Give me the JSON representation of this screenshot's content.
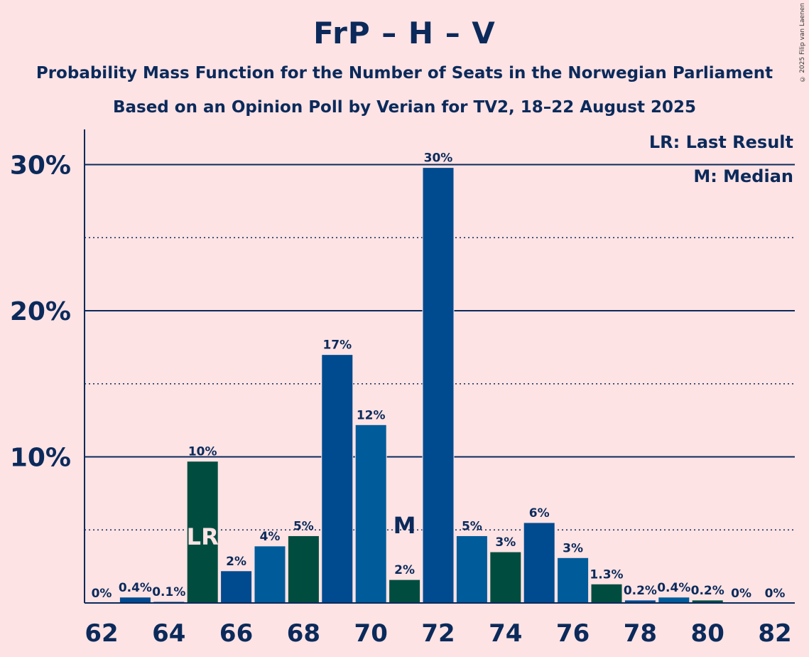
{
  "header": {
    "title": "FrP – H – V",
    "subtitle": "Probability Mass Function for the Number of Seats in the Norwegian Parliament",
    "subtitle2": "Based on an Opinion Poll by Verian for TV2, 18–22 August 2025",
    "copyright": "© 2025 Filip van Laenen"
  },
  "legend": {
    "last_result": "LR: Last Result",
    "median": "M: Median"
  },
  "colors": {
    "background": "#fde3e4",
    "text": "#0b2a5b",
    "bar_blue_dark": "#004a8f",
    "bar_blue_light": "#005b9a",
    "bar_green": "#004d40",
    "axis": "#0b2a5b"
  },
  "chart_data": {
    "type": "bar",
    "x": [
      62,
      63,
      64,
      65,
      66,
      67,
      68,
      69,
      70,
      71,
      72,
      73,
      74,
      75,
      76,
      77,
      78,
      79,
      80,
      81,
      82
    ],
    "values": [
      0,
      0.4,
      0.1,
      9.7,
      2.2,
      3.9,
      4.6,
      17.0,
      12.2,
      1.6,
      29.8,
      4.6,
      3.5,
      5.5,
      3.1,
      1.3,
      0.2,
      0.4,
      0.2,
      0,
      0
    ],
    "labels": [
      "0%",
      "0.4%",
      "0.1%",
      "10%",
      "2%",
      "4%",
      "5%",
      "17%",
      "12%",
      "2%",
      "30%",
      "5%",
      "3%",
      "6%",
      "3%",
      "1.3%",
      "0.2%",
      "0.4%",
      "0.2%",
      "0%",
      "0%"
    ],
    "bar_colors": [
      "dark",
      "dark",
      "dark",
      "green",
      "dark",
      "light",
      "green",
      "dark",
      "light",
      "green",
      "dark",
      "light",
      "green",
      "dark",
      "light",
      "green",
      "dark",
      "light",
      "green",
      "dark",
      "dark"
    ],
    "ylim": [
      0,
      32
    ],
    "y_ticks": [
      10,
      20,
      30
    ],
    "y_tick_labels": [
      "10%",
      "20%",
      "30%"
    ],
    "y_minor_ticks": [
      5,
      15,
      25
    ],
    "x_tick_labels": [
      "62",
      "64",
      "66",
      "68",
      "70",
      "72",
      "74",
      "76",
      "78",
      "80",
      "82"
    ],
    "last_result_seat": 65,
    "last_result_label": "LR",
    "median_seat": 71,
    "median_label": "M"
  }
}
